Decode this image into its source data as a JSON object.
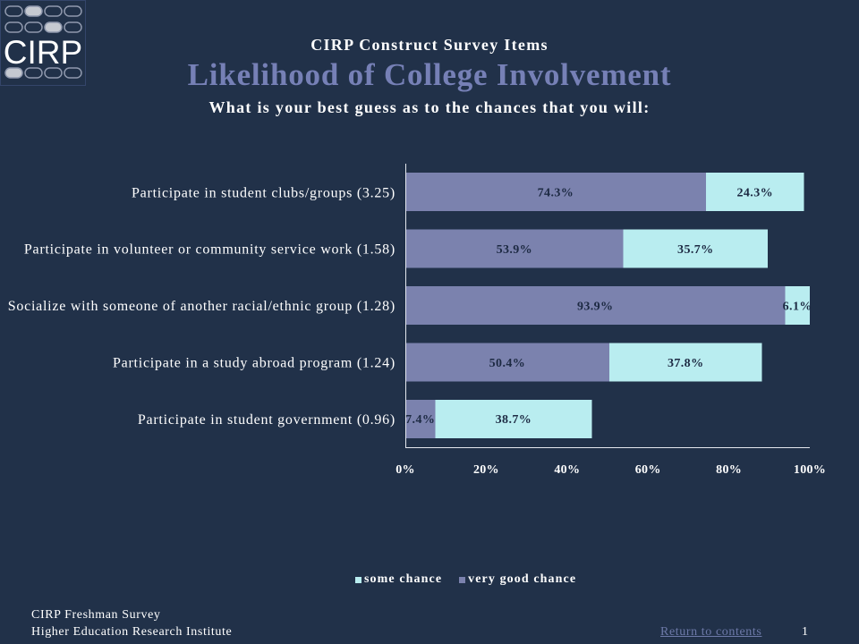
{
  "logo": {
    "text": "CIRP"
  },
  "header": {
    "supertitle": "CIRP Construct Survey Items"
  },
  "chart_data": {
    "type": "bar",
    "orientation": "horizontal",
    "stacked": true,
    "title": "Likelihood of College Involvement",
    "subtitle": "What is your best guess as to the chances that you will:",
    "categories": [
      "Participate in student clubs/groups (3.25)",
      "Participate in volunteer or community service work (1.58)",
      "Socialize with someone of another racial/ethnic group (1.28)",
      "Participate in a study abroad program (1.24)",
      "Participate in student government (0.96)"
    ],
    "series": [
      {
        "name": "very good chance",
        "values": [
          74.3,
          53.9,
          93.9,
          50.4,
          7.4
        ],
        "color": "#7b82ae"
      },
      {
        "name": "some chance",
        "values": [
          24.3,
          35.7,
          6.1,
          37.8,
          38.7
        ],
        "color": "#b9edf0"
      }
    ],
    "value_suffix": "%",
    "xlim": [
      0,
      100
    ],
    "xticks": [
      0,
      20,
      40,
      60,
      80,
      100
    ],
    "xtick_labels": [
      "0%",
      "20%",
      "40%",
      "60%",
      "80%",
      "100%"
    ],
    "data_labels": true,
    "grid": false,
    "legend_position": "bottom"
  },
  "footer": {
    "survey_name": "CIRP Freshman Survey",
    "institute": "Higher Education Research Institute",
    "return_link": "Return to contents",
    "page_number": "1"
  },
  "theme": {
    "background": "#213149",
    "title_color": "#7680b6",
    "data_label_color": "#1d2a43",
    "axis_color": "#e4e7ee",
    "link_color": "#6d79a8"
  }
}
